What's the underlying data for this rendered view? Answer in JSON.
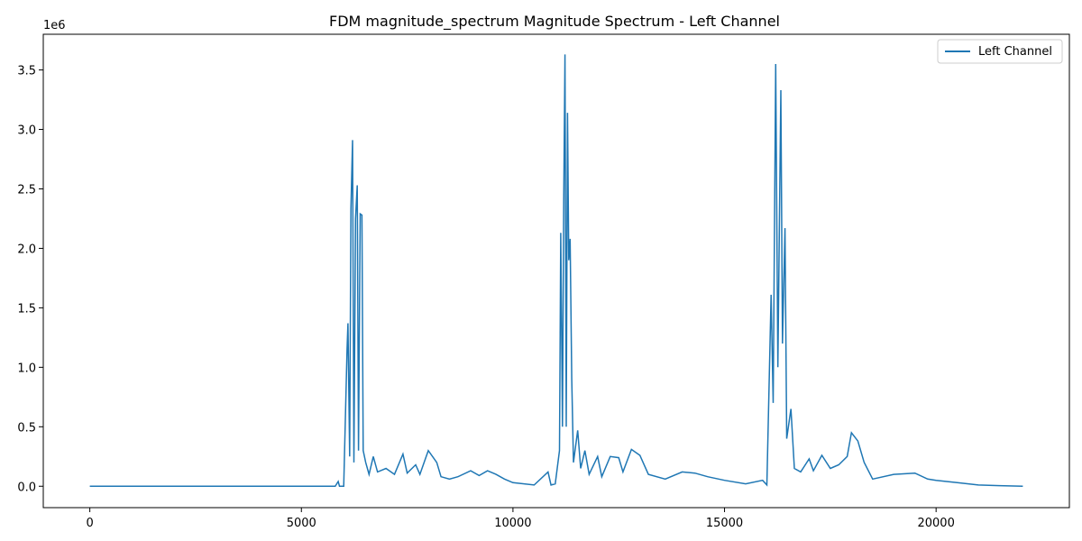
{
  "chart_data": {
    "type": "line",
    "title": "FDM magnitude_spectrum Magnitude Spectrum - Left Channel",
    "xlabel": "",
    "ylabel": "",
    "y_offset_label": "1e6",
    "xlim": [
      -1100,
      23150
    ],
    "ylim": [
      -180000,
      3800000
    ],
    "x_ticks": [
      0,
      5000,
      10000,
      15000,
      20000
    ],
    "x_tick_labels": [
      "0",
      "5000",
      "10000",
      "15000",
      "20000"
    ],
    "y_ticks": [
      0,
      500000,
      1000000,
      1500000,
      2000000,
      2500000,
      3000000,
      3500000
    ],
    "y_tick_labels": [
      "0.0",
      "0.5",
      "1.0",
      "1.5",
      "2.0",
      "2.5",
      "3.0",
      "3.5"
    ],
    "grid": false,
    "legend_position": "top-right",
    "series": [
      {
        "name": "Left Channel",
        "color": "#1f77b4",
        "points": [
          [
            0,
            0
          ],
          [
            5800,
            0
          ],
          [
            5870,
            40000
          ],
          [
            5900,
            0
          ],
          [
            6000,
            0
          ],
          [
            6080,
            1150000
          ],
          [
            6100,
            1370000
          ],
          [
            6140,
            250000
          ],
          [
            6170,
            2330000
          ],
          [
            6210,
            2910000
          ],
          [
            6240,
            200000
          ],
          [
            6280,
            2250000
          ],
          [
            6320,
            2530000
          ],
          [
            6350,
            300000
          ],
          [
            6390,
            2290000
          ],
          [
            6430,
            2280000
          ],
          [
            6460,
            300000
          ],
          [
            6520,
            200000
          ],
          [
            6600,
            100000
          ],
          [
            6700,
            250000
          ],
          [
            6800,
            120000
          ],
          [
            7000,
            150000
          ],
          [
            7200,
            100000
          ],
          [
            7400,
            270000
          ],
          [
            7500,
            110000
          ],
          [
            7700,
            180000
          ],
          [
            7800,
            100000
          ],
          [
            8000,
            300000
          ],
          [
            8200,
            200000
          ],
          [
            8300,
            80000
          ],
          [
            8500,
            60000
          ],
          [
            8700,
            80000
          ],
          [
            9000,
            130000
          ],
          [
            9200,
            90000
          ],
          [
            9400,
            130000
          ],
          [
            9600,
            100000
          ],
          [
            9800,
            60000
          ],
          [
            10000,
            30000
          ],
          [
            10500,
            10000
          ],
          [
            10830,
            120000
          ],
          [
            10900,
            10000
          ],
          [
            11000,
            20000
          ],
          [
            11100,
            300000
          ],
          [
            11130,
            2130000
          ],
          [
            11170,
            500000
          ],
          [
            11200,
            2400000
          ],
          [
            11230,
            3630000
          ],
          [
            11260,
            500000
          ],
          [
            11290,
            3140000
          ],
          [
            11320,
            1900000
          ],
          [
            11350,
            2080000
          ],
          [
            11390,
            900000
          ],
          [
            11430,
            200000
          ],
          [
            11530,
            470000
          ],
          [
            11600,
            150000
          ],
          [
            11700,
            300000
          ],
          [
            11800,
            100000
          ],
          [
            12000,
            250000
          ],
          [
            12100,
            80000
          ],
          [
            12300,
            250000
          ],
          [
            12500,
            240000
          ],
          [
            12600,
            120000
          ],
          [
            12800,
            310000
          ],
          [
            13000,
            260000
          ],
          [
            13200,
            100000
          ],
          [
            13600,
            60000
          ],
          [
            14000,
            120000
          ],
          [
            14300,
            110000
          ],
          [
            14600,
            80000
          ],
          [
            15000,
            50000
          ],
          [
            15500,
            20000
          ],
          [
            15900,
            50000
          ],
          [
            16000,
            10000
          ],
          [
            16100,
            1610000
          ],
          [
            16150,
            700000
          ],
          [
            16210,
            3550000
          ],
          [
            16260,
            1000000
          ],
          [
            16330,
            3330000
          ],
          [
            16370,
            1200000
          ],
          [
            16430,
            2170000
          ],
          [
            16470,
            400000
          ],
          [
            16570,
            650000
          ],
          [
            16650,
            150000
          ],
          [
            16800,
            120000
          ],
          [
            17000,
            230000
          ],
          [
            17100,
            130000
          ],
          [
            17300,
            260000
          ],
          [
            17500,
            150000
          ],
          [
            17700,
            180000
          ],
          [
            17900,
            250000
          ],
          [
            18000,
            450000
          ],
          [
            18150,
            380000
          ],
          [
            18300,
            200000
          ],
          [
            18500,
            60000
          ],
          [
            19000,
            100000
          ],
          [
            19500,
            110000
          ],
          [
            19800,
            60000
          ],
          [
            20000,
            50000
          ],
          [
            20500,
            30000
          ],
          [
            21000,
            10000
          ],
          [
            21500,
            5000
          ],
          [
            22050,
            0
          ]
        ]
      }
    ]
  }
}
